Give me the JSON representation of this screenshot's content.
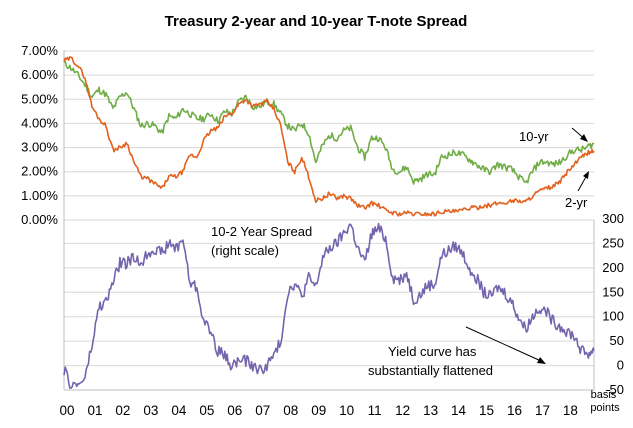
{
  "chart_data": [
    {
      "type": "line",
      "title": "Treasury 2-year and 10-year T-note Spread",
      "xlabel": "",
      "ylabel": "",
      "x_ticks": [
        "00",
        "01",
        "02",
        "03",
        "04",
        "05",
        "06",
        "07",
        "08",
        "09",
        "10",
        "11",
        "12",
        "13",
        "14",
        "15",
        "16",
        "17",
        "18"
      ],
      "x_range": [
        2000,
        2018.95
      ],
      "y_ticks": [
        "7.00%",
        "6.00%",
        "5.00%",
        "4.00%",
        "3.00%",
        "2.00%",
        "1.00%",
        "0.00%"
      ],
      "ylim": [
        0,
        7
      ],
      "grid": true,
      "colors": {
        "10yr": "#70ad47",
        "2yr": "#e2611e"
      },
      "annotations": [
        {
          "text": "10-yr"
        },
        {
          "text": "2-yr"
        }
      ],
      "x": [
        2000,
        2000.25,
        2000.5,
        2000.75,
        2001,
        2001.25,
        2001.5,
        2001.75,
        2002,
        2002.25,
        2002.5,
        2002.75,
        2003,
        2003.25,
        2003.5,
        2003.75,
        2004,
        2004.25,
        2004.5,
        2004.75,
        2005,
        2005.25,
        2005.5,
        2005.75,
        2006,
        2006.25,
        2006.5,
        2006.75,
        2007,
        2007.25,
        2007.5,
        2007.75,
        2008,
        2008.25,
        2008.5,
        2008.75,
        2009,
        2009.25,
        2009.5,
        2009.75,
        2010,
        2010.25,
        2010.5,
        2010.75,
        2011,
        2011.25,
        2011.5,
        2011.75,
        2012,
        2012.25,
        2012.5,
        2012.75,
        2013,
        2013.25,
        2013.5,
        2013.75,
        2014,
        2014.25,
        2014.5,
        2014.75,
        2015,
        2015.25,
        2015.5,
        2015.75,
        2016,
        2016.25,
        2016.5,
        2016.75,
        2017,
        2017.25,
        2017.5,
        2017.75,
        2018,
        2018.25,
        2018.5,
        2018.75,
        2018.95
      ],
      "series": [
        {
          "name": "10-yr",
          "values": [
            6.5,
            6.3,
            6.0,
            5.6,
            5.1,
            5.4,
            5.2,
            4.6,
            5.1,
            5.3,
            4.6,
            3.9,
            4.0,
            3.9,
            3.6,
            4.3,
            4.2,
            4.6,
            4.4,
            4.2,
            4.2,
            4.4,
            4.1,
            4.5,
            4.4,
            4.9,
            5.1,
            4.7,
            4.7,
            4.9,
            4.8,
            4.4,
            3.9,
            3.7,
            4.0,
            3.6,
            2.4,
            3.1,
            3.5,
            3.4,
            3.7,
            3.8,
            3.0,
            2.6,
            3.4,
            3.4,
            3.0,
            2.1,
            2.0,
            2.2,
            1.6,
            1.7,
            1.9,
            1.9,
            2.6,
            2.7,
            2.8,
            2.7,
            2.5,
            2.3,
            2.1,
            2.0,
            2.3,
            2.2,
            2.1,
            1.8,
            1.5,
            2.0,
            2.4,
            2.4,
            2.3,
            2.4,
            2.7,
            2.9,
            2.9,
            3.05,
            3.15
          ]
        },
        {
          "name": "2-yr",
          "values": [
            6.6,
            6.7,
            6.4,
            5.9,
            4.7,
            4.2,
            3.9,
            2.9,
            3.0,
            3.2,
            2.4,
            1.8,
            1.7,
            1.5,
            1.3,
            1.8,
            1.8,
            2.0,
            2.7,
            2.6,
            3.3,
            3.7,
            3.8,
            4.3,
            4.4,
            4.8,
            5.0,
            4.7,
            4.8,
            4.9,
            4.6,
            3.9,
            2.4,
            2.0,
            2.6,
            1.8,
            0.8,
            0.9,
            1.1,
            0.9,
            1.0,
            0.9,
            0.6,
            0.5,
            0.7,
            0.6,
            0.4,
            0.3,
            0.25,
            0.3,
            0.25,
            0.25,
            0.25,
            0.25,
            0.35,
            0.35,
            0.35,
            0.4,
            0.5,
            0.5,
            0.6,
            0.6,
            0.7,
            0.7,
            0.8,
            0.8,
            0.75,
            1.0,
            1.2,
            1.3,
            1.4,
            1.6,
            2.0,
            2.3,
            2.6,
            2.8,
            2.85
          ]
        }
      ]
    },
    {
      "type": "line",
      "title": "",
      "xlabel": "",
      "ylabel": "",
      "y_ticks": [
        "300",
        "250",
        "200",
        "150",
        "100",
        "50",
        "0",
        "-50"
      ],
      "ylim": [
        -50,
        300
      ],
      "y_axis_side": "right",
      "y_unit_label": "basis points",
      "grid": true,
      "color": "#7464ae",
      "annotations": [
        {
          "text": "10-2 Year  Spread (right scale)"
        },
        {
          "text": "Yield curve has substantially flattened"
        }
      ],
      "series": [
        {
          "name": "10-2 Year  Spread",
          "values": [
            -10,
            -40,
            -40,
            -25,
            40,
            120,
            130,
            170,
            210,
            210,
            220,
            210,
            230,
            240,
            230,
            250,
            240,
            260,
            170,
            160,
            90,
            70,
            30,
            20,
            0,
            10,
            10,
            0,
            -10,
            0,
            20,
            50,
            150,
            170,
            140,
            180,
            160,
            220,
            240,
            250,
            270,
            290,
            240,
            210,
            270,
            280,
            260,
            180,
            175,
            190,
            135,
            145,
            165,
            165,
            225,
            235,
            245,
            230,
            200,
            180,
            150,
            140,
            160,
            150,
            130,
            100,
            75,
            100,
            120,
            110,
            90,
            80,
            70,
            60,
            30,
            25,
            30
          ]
        }
      ]
    }
  ]
}
